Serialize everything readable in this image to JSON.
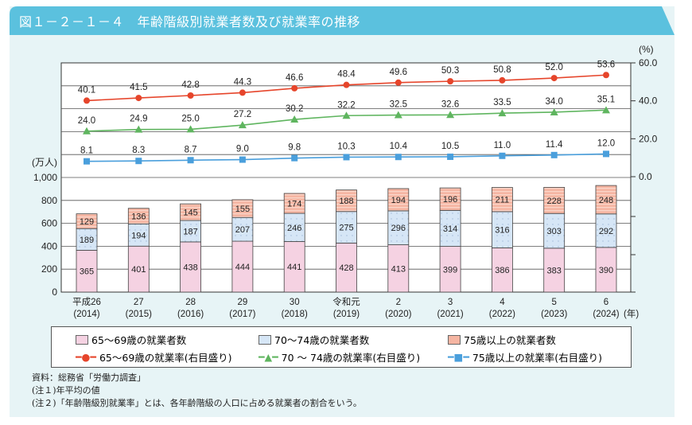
{
  "title": "図１－２－１－４　年齢階級別就業者数及び就業率の推移",
  "chart_data": {
    "type": "bar+line",
    "categories": [
      {
        "era": "平成26",
        "year": "(2014)"
      },
      {
        "era": "27",
        "year": "(2015)"
      },
      {
        "era": "28",
        "year": "(2016)"
      },
      {
        "era": "29",
        "year": "(2017)"
      },
      {
        "era": "30",
        "year": "(2018)"
      },
      {
        "era": "令和元",
        "year": "(2019)"
      },
      {
        "era": "2",
        "year": "(2020)"
      },
      {
        "era": "3",
        "year": "(2021)"
      },
      {
        "era": "4",
        "year": "(2022)"
      },
      {
        "era": "5",
        "year": "(2023)"
      },
      {
        "era": "6",
        "year": "(2024)"
      }
    ],
    "x_unit": "(年)",
    "left_axis": {
      "unit": "(万人)",
      "ylim": [
        0,
        1000
      ],
      "ticks": [
        "0",
        "200",
        "400",
        "600",
        "800",
        "1,000"
      ],
      "tick_values": [
        0,
        200,
        400,
        600,
        800,
        1000
      ]
    },
    "right_axis": {
      "unit": "(%)",
      "ylim": [
        0,
        60
      ],
      "ticks": [
        "0.0",
        "20.0",
        "40.0",
        "60.0"
      ],
      "tick_values": [
        0,
        20,
        40,
        60
      ]
    },
    "bar_series": [
      {
        "name": "65～69歳の就業者数",
        "color": "#f5d2e2",
        "values": [
          365,
          401,
          438,
          444,
          441,
          428,
          413,
          399,
          386,
          383,
          390
        ]
      },
      {
        "name": "70～74歳の就業者数",
        "color": "#d6e6f6",
        "values": [
          189,
          194,
          187,
          207,
          246,
          275,
          296,
          314,
          316,
          303,
          292
        ]
      },
      {
        "name": "75歳以上の就業者数",
        "color": "#f5b5a2",
        "values": [
          129,
          136,
          145,
          155,
          174,
          188,
          194,
          196,
          211,
          228,
          248
        ]
      }
    ],
    "line_series": [
      {
        "name": "65～69歳の就業率(右目盛り)",
        "color": "#e6452b",
        "marker": "circle",
        "labels": [
          "40.1",
          "41.5",
          "42.8",
          "44.3",
          "46.6",
          "48.4",
          "49.6",
          "50.3",
          "50.8",
          "52.0",
          "53.6"
        ],
        "values": [
          40.1,
          41.5,
          42.8,
          44.3,
          46.6,
          48.4,
          49.6,
          50.3,
          50.8,
          52.0,
          53.6
        ]
      },
      {
        "name": "70 ～ 74歳の就業率(右目盛り)",
        "color": "#5fb55f",
        "marker": "triangle",
        "labels": [
          "24.0",
          "24.9",
          "25.0",
          "27.2",
          "30.2",
          "32.2",
          "32.5",
          "32.6",
          "33.5",
          "34.0",
          "35.1"
        ],
        "values": [
          24.0,
          24.9,
          25.0,
          27.2,
          30.2,
          32.2,
          32.5,
          32.6,
          33.5,
          34.0,
          35.1
        ]
      },
      {
        "name": "75歳以上の就業率(右目盛り)",
        "color": "#4a9fdc",
        "marker": "square",
        "labels": [
          "8.1",
          "8.3",
          "8.7",
          "9.0",
          "9.8",
          "10.3",
          "10.4",
          "10.5",
          "11.0",
          "11.4",
          "12.0"
        ],
        "values": [
          8.1,
          8.3,
          8.7,
          9.0,
          9.8,
          10.3,
          10.4,
          10.5,
          11.0,
          11.4,
          12.0
        ]
      }
    ],
    "grid": true,
    "legend": "bottom"
  },
  "notes": [
    "資料：総務省「労働力調査」",
    "(注１)年平均の値",
    "(注２)「年齢階級別就業率」とは、各年齢階級の人口に占める就業者の割合をいう。"
  ],
  "colors": {
    "header": "#5bc1de",
    "panel": "#e7f4f6"
  }
}
